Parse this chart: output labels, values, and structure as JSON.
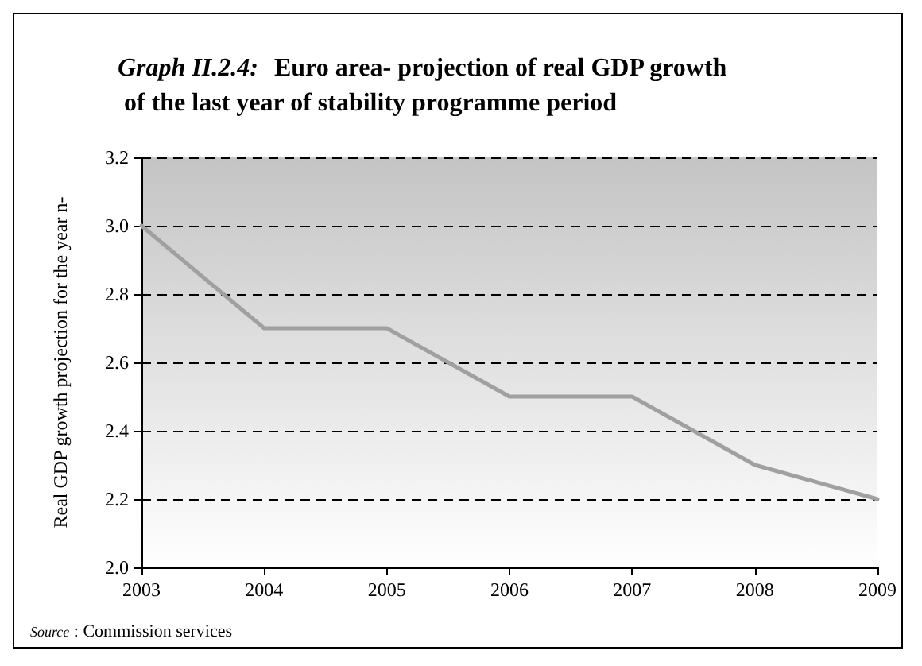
{
  "chart_data": {
    "type": "line",
    "title": "Graph II.2.4: Euro area- projection of real GDP growth of the last year of stability programme period",
    "ylabel": "Real GDP growth projection for the year n-",
    "x": [
      2003,
      2004,
      2005,
      2006,
      2007,
      2008,
      2009
    ],
    "series": [
      {
        "color": "#a0a0a0",
        "values": [
          3.0,
          2.7,
          2.7,
          2.5,
          2.5,
          2.3,
          2.2
        ]
      }
    ],
    "xlim": [
      2003,
      2009
    ],
    "xticks": [
      2003,
      2004,
      2005,
      2006,
      2007,
      2008,
      2009
    ],
    "ylim": [
      2.0,
      3.2
    ],
    "yticks": [
      {
        "value": 2.0,
        "label": "2.0"
      },
      {
        "value": 2.2,
        "label": "2.2"
      },
      {
        "value": 2.4,
        "label": "2.4"
      },
      {
        "value": 2.6,
        "label": "2.6"
      },
      {
        "value": 2.8,
        "label": "2.8"
      },
      {
        "value": 3.0,
        "label": "3.0"
      },
      {
        "value": 3.2,
        "label": "3.2"
      }
    ],
    "grid": "y",
    "marker": "none",
    "line_style": "solid",
    "annotations": [
      "Source : Commission services"
    ]
  }
}
